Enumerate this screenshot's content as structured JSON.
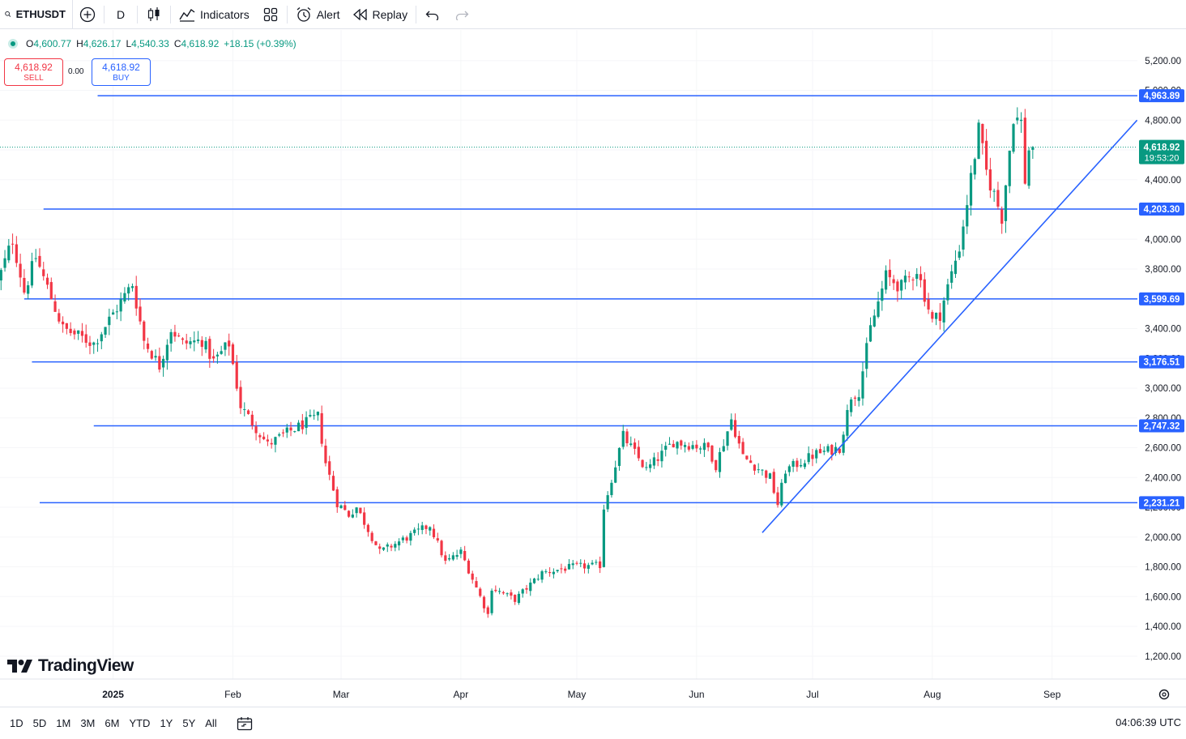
{
  "toolbar": {
    "symbol": "ETHUSDT",
    "interval": "D",
    "indicators_label": "Indicators",
    "alert_label": "Alert",
    "replay_label": "Replay"
  },
  "legend": {
    "open_label": "O",
    "open": "4,600.77",
    "high_label": "H",
    "high": "4,626.17",
    "low_label": "L",
    "low": "4,540.33",
    "close_label": "C",
    "close": "4,618.92",
    "change": "+18.15 (+0.39%)"
  },
  "trade": {
    "sell_price": "4,618.92",
    "sell_label": "SELL",
    "spread": "0.00",
    "buy_price": "4,618.92",
    "buy_label": "BUY"
  },
  "brand": {
    "name": "TradingView"
  },
  "ranges": [
    "1D",
    "5D",
    "1M",
    "3M",
    "6M",
    "YTD",
    "1Y",
    "5Y",
    "All"
  ],
  "clock": "04:06:39 UTC",
  "colors": {
    "up": "#089981",
    "down": "#f23645",
    "drawing": "#2962ff",
    "accent": "#2962ff"
  },
  "chart_data": {
    "type": "candlestick",
    "symbol": "ETHUSDT",
    "interval": "1D",
    "price_axis": {
      "ticks": [
        "5,200.00",
        "5,000.00",
        "4,800.00",
        "4,600.00",
        "4,400.00",
        "4,200.00",
        "4,000.00",
        "3,800.00",
        "3,600.00",
        "3,400.00",
        "3,200.00",
        "3,000.00",
        "2,800.00",
        "2,600.00",
        "2,400.00",
        "2,200.00",
        "2,000.00",
        "1,800.00",
        "1,600.00",
        "1,400.00",
        "1,200.00"
      ],
      "range": [
        1080,
        5420
      ]
    },
    "time_axis": {
      "labels": [
        {
          "label": "2025",
          "date": "2025-01-01"
        },
        {
          "label": "Feb",
          "date": "2025-02-01"
        },
        {
          "label": "Mar",
          "date": "2025-03-01"
        },
        {
          "label": "Apr",
          "date": "2025-04-01"
        },
        {
          "label": "May",
          "date": "2025-05-01"
        },
        {
          "label": "Jun",
          "date": "2025-06-01"
        },
        {
          "label": "Jul",
          "date": "2025-07-01"
        },
        {
          "label": "Aug",
          "date": "2025-08-01"
        },
        {
          "label": "Sep",
          "date": "2025-09-01"
        }
      ],
      "range": [
        "2024-12-02",
        "2025-09-28"
      ]
    },
    "horizontal_levels": [
      {
        "price": 4963.89,
        "label": "4,963.89",
        "from_date": "2024-12-28"
      },
      {
        "price": 4203.3,
        "label": "4,203.30",
        "from_date": "2024-12-14"
      },
      {
        "price": 3599.69,
        "label": "3,599.69",
        "from_date": "2024-12-09"
      },
      {
        "price": 3176.51,
        "label": "3,176.51",
        "from_date": "2024-12-11"
      },
      {
        "price": 2747.32,
        "label": "2,747.32",
        "from_date": "2024-12-27"
      },
      {
        "price": 2231.21,
        "label": "2,231.21",
        "from_date": "2024-12-13"
      }
    ],
    "trendline": {
      "from": {
        "date": "2025-06-18",
        "price": 2030
      },
      "to": {
        "date": "2025-09-23",
        "price": 4800
      }
    },
    "last_price": {
      "value": 4618.92,
      "label": "4,618.92",
      "countdown": "19:53:20"
    },
    "anchors": [
      {
        "date": "2024-12-02",
        "close": 3700
      },
      {
        "date": "2024-12-06",
        "close": 4000
      },
      {
        "date": "2024-12-09",
        "close": 3650
      },
      {
        "date": "2024-12-12",
        "close": 3880
      },
      {
        "date": "2024-12-19",
        "close": 3400
      },
      {
        "date": "2024-12-27",
        "close": 3300
      },
      {
        "date": "2025-01-06",
        "close": 3700
      },
      {
        "date": "2025-01-09",
        "close": 3320
      },
      {
        "date": "2025-01-13",
        "close": 3150
      },
      {
        "date": "2025-01-16",
        "close": 3400
      },
      {
        "date": "2025-01-19",
        "close": 3300
      },
      {
        "date": "2025-01-24",
        "close": 3320
      },
      {
        "date": "2025-01-27",
        "close": 3180
      },
      {
        "date": "2025-01-31",
        "close": 3300
      },
      {
        "date": "2025-02-03",
        "close": 2880
      },
      {
        "date": "2025-02-10",
        "close": 2620
      },
      {
        "date": "2025-02-15",
        "close": 2700
      },
      {
        "date": "2025-02-23",
        "close": 2810
      },
      {
        "date": "2025-02-25",
        "close": 2500
      },
      {
        "date": "2025-02-28",
        "close": 2230
      },
      {
        "date": "2025-03-03",
        "close": 2150
      },
      {
        "date": "2025-03-05",
        "close": 2200
      },
      {
        "date": "2025-03-11",
        "close": 1900
      },
      {
        "date": "2025-03-19",
        "close": 2010
      },
      {
        "date": "2025-03-24",
        "close": 2080
      },
      {
        "date": "2025-03-28",
        "close": 1830
      },
      {
        "date": "2025-04-01",
        "close": 1900
      },
      {
        "date": "2025-04-06",
        "close": 1600
      },
      {
        "date": "2025-04-08",
        "close": 1480
      },
      {
        "date": "2025-04-09",
        "close": 1660
      },
      {
        "date": "2025-04-15",
        "close": 1580
      },
      {
        "date": "2025-04-22",
        "close": 1760
      },
      {
        "date": "2025-04-30",
        "close": 1800
      },
      {
        "date": "2025-05-07",
        "close": 1810
      },
      {
        "date": "2025-05-08",
        "close": 2200
      },
      {
        "date": "2025-05-13",
        "close": 2680
      },
      {
        "date": "2025-05-19",
        "close": 2450
      },
      {
        "date": "2025-05-26",
        "close": 2640
      },
      {
        "date": "2025-06-04",
        "close": 2600
      },
      {
        "date": "2025-06-06",
        "close": 2480
      },
      {
        "date": "2025-06-10",
        "close": 2790
      },
      {
        "date": "2025-06-13",
        "close": 2540
      },
      {
        "date": "2025-06-20",
        "close": 2400
      },
      {
        "date": "2025-06-22",
        "close": 2220
      },
      {
        "date": "2025-06-24",
        "close": 2450
      },
      {
        "date": "2025-07-02",
        "close": 2560
      },
      {
        "date": "2025-07-08",
        "close": 2600
      },
      {
        "date": "2025-07-11",
        "close": 2950
      },
      {
        "date": "2025-07-13",
        "close": 2980
      },
      {
        "date": "2025-07-16",
        "close": 3400
      },
      {
        "date": "2025-07-20",
        "close": 3750
      },
      {
        "date": "2025-07-24",
        "close": 3680
      },
      {
        "date": "2025-07-28",
        "close": 3800
      },
      {
        "date": "2025-08-01",
        "close": 3450
      },
      {
        "date": "2025-08-03",
        "close": 3500
      },
      {
        "date": "2025-08-08",
        "close": 3950
      },
      {
        "date": "2025-08-10",
        "close": 4250
      },
      {
        "date": "2025-08-13",
        "close": 4730
      },
      {
        "date": "2025-08-15",
        "close": 4450
      },
      {
        "date": "2025-08-19",
        "close": 4150
      },
      {
        "date": "2025-08-22",
        "close": 4830
      },
      {
        "date": "2025-08-24",
        "close": 4780
      },
      {
        "date": "2025-08-25",
        "close": 4400
      },
      {
        "date": "2025-08-26",
        "close": 4600
      },
      {
        "date": "2025-08-27",
        "close": 4618.92
      }
    ]
  }
}
